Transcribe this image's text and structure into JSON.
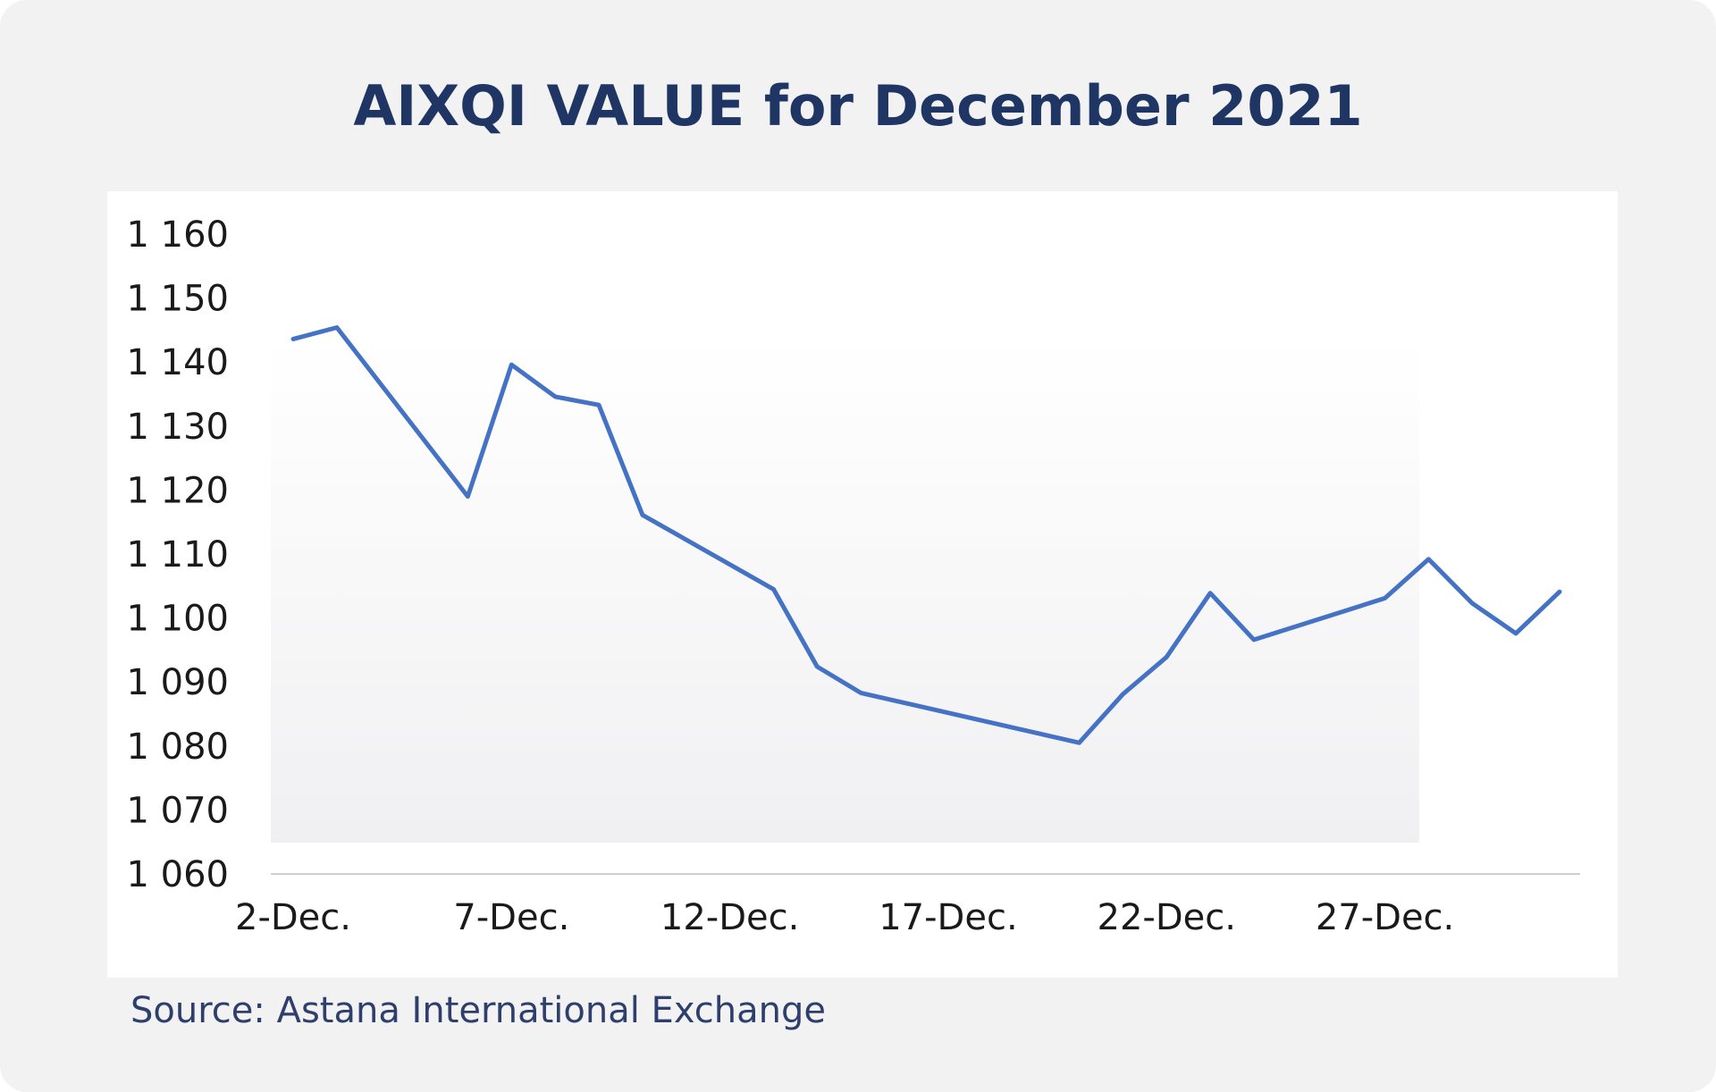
{
  "title": "AIXQI VALUE for December 2021",
  "source": "Source: Astana International Exchange",
  "colors": {
    "background": "#f2f2f2",
    "title": "#1f3564",
    "line": "#4472c4",
    "source_text": "#2e3f6e"
  },
  "chart_data": {
    "type": "line",
    "title": "AIXQI VALUE for December 2021",
    "xlabel": "",
    "ylabel": "",
    "ylim": [
      1060,
      1160
    ],
    "ytick_values": [
      1060,
      1070,
      1080,
      1090,
      1100,
      1110,
      1120,
      1130,
      1140,
      1150,
      1160
    ],
    "ytick_labels": [
      "1 060",
      "1 070",
      "1 080",
      "1 090",
      "1 100",
      "1 110",
      "1 120",
      "1 130",
      "1 140",
      "1 150",
      "1 160"
    ],
    "xlim": [
      "2021-12-02",
      "2021-12-31"
    ],
    "xtick_dates": [
      "2021-12-02",
      "2021-12-07",
      "2021-12-12",
      "2021-12-17",
      "2021-12-22",
      "2021-12-27"
    ],
    "xtick_labels": [
      "2-Dec.",
      "7-Dec.",
      "12-Dec.",
      "17-Dec.",
      "22-Dec.",
      "27-Dec."
    ],
    "grid": false,
    "legend": "none",
    "series": [
      {
        "x": [
          "2021-12-02",
          "2021-12-03",
          "2021-12-06",
          "2021-12-07",
          "2021-12-08",
          "2021-12-09",
          "2021-12-10",
          "2021-12-13",
          "2021-12-14",
          "2021-12-15",
          "2021-12-20",
          "2021-12-21",
          "2021-12-22",
          "2021-12-23",
          "2021-12-24",
          "2021-12-27",
          "2021-12-28",
          "2021-12-29",
          "2021-12-30",
          "2021-12-31"
        ],
        "values": [
          1143.6,
          1145.4,
          1119.0,
          1139.6,
          1134.6,
          1133.3,
          1116.1,
          1104.5,
          1092.4,
          1088.3,
          1080.5,
          1088.1,
          1093.9,
          1103.9,
          1096.6,
          1103.1,
          1109.2,
          1102.3,
          1097.6,
          1104.1
        ]
      }
    ]
  }
}
